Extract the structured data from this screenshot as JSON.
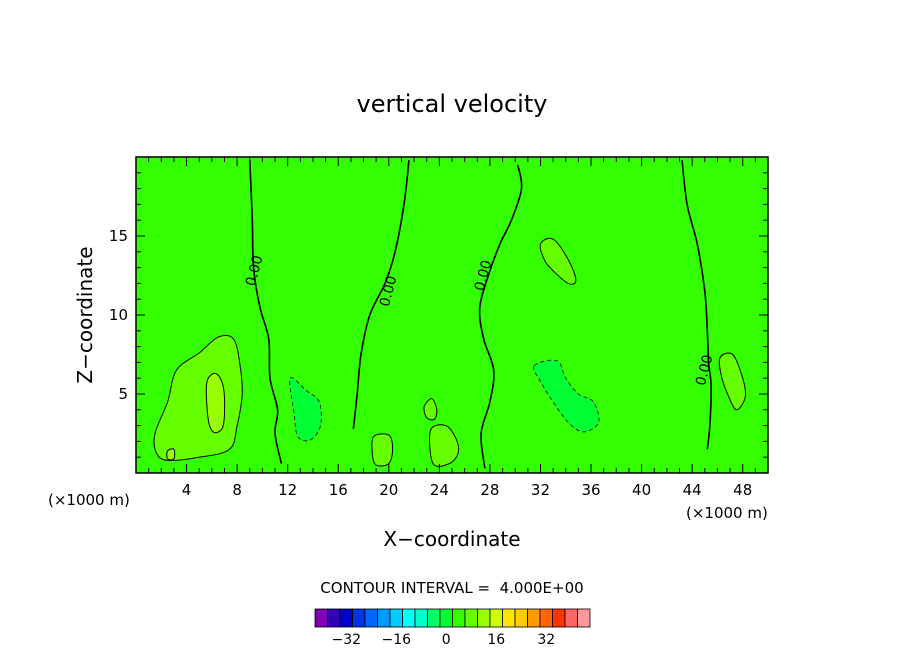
{
  "chart_data": {
    "type": "heatmap",
    "title": "vertical velocity",
    "xlabel": "X−coordinate",
    "ylabel": "Z−coordinate",
    "xunit_left": "(×1000 m)",
    "xunit_right": "(×1000 m)",
    "xlim": [
      0,
      50
    ],
    "ylim": [
      0,
      20
    ],
    "x_ticks": [
      {
        "value": 4,
        "label": "4"
      },
      {
        "value": 8,
        "label": "8"
      },
      {
        "value": 12,
        "label": "12"
      },
      {
        "value": 16,
        "label": "16"
      },
      {
        "value": 20,
        "label": "20"
      },
      {
        "value": 24,
        "label": "24"
      },
      {
        "value": 28,
        "label": "28"
      },
      {
        "value": 32,
        "label": "32"
      },
      {
        "value": 36,
        "label": "36"
      },
      {
        "value": 40,
        "label": "40"
      },
      {
        "value": 44,
        "label": "44"
      },
      {
        "value": 48,
        "label": "48"
      }
    ],
    "y_ticks": [
      {
        "value": 5,
        "label": "5"
      },
      {
        "value": 10,
        "label": "10"
      },
      {
        "value": 15,
        "label": "15"
      }
    ],
    "background_color": "#33ff00",
    "contour_interval_text": "CONTOUR INTERVAL =  4.000E+00",
    "contour_interval": 4,
    "zero_contour_label": "0.00",
    "zero_contours": [
      {
        "label_at": [
          9.4,
          12.8
        ],
        "points": [
          [
            9.0,
            19.8
          ],
          [
            9.2,
            16
          ],
          [
            9.3,
            13
          ],
          [
            9.8,
            10.5
          ],
          [
            10.5,
            8.5
          ],
          [
            10.6,
            6
          ],
          [
            11.2,
            4
          ],
          [
            11.0,
            2.5
          ],
          [
            11.5,
            0.6
          ]
        ]
      },
      {
        "label_at": [
          20.0,
          11.5
        ],
        "points": [
          [
            21.6,
            19.8
          ],
          [
            21.2,
            17
          ],
          [
            20.5,
            14
          ],
          [
            19.7,
            12
          ],
          [
            18.5,
            10
          ],
          [
            17.8,
            7.5
          ],
          [
            17.5,
            5
          ],
          [
            17.2,
            2.8
          ]
        ]
      },
      {
        "label_at": [
          27.5,
          12.5
        ],
        "points": [
          [
            30.2,
            19.5
          ],
          [
            30.5,
            18
          ],
          [
            29.7,
            16
          ],
          [
            28.8,
            14.5
          ],
          [
            28.0,
            12.8
          ],
          [
            27.2,
            10.5
          ],
          [
            27.5,
            8.5
          ],
          [
            28.3,
            6.5
          ],
          [
            28.0,
            4.5
          ],
          [
            27.3,
            2.5
          ],
          [
            27.6,
            0.3
          ]
        ]
      },
      {
        "label_at": [
          45.0,
          6.5
        ],
        "points": [
          [
            43.2,
            19.8
          ],
          [
            43.6,
            17
          ],
          [
            44.4,
            14.5
          ],
          [
            45.0,
            11.5
          ],
          [
            45.2,
            9
          ],
          [
            45.3,
            7
          ],
          [
            45.5,
            5.5
          ],
          [
            45.4,
            3
          ],
          [
            45.2,
            1.5
          ]
        ]
      }
    ],
    "regions": [
      {
        "value": 4,
        "color": "#66ff00",
        "points": [
          [
            1.5,
            2.5
          ],
          [
            2.5,
            4.5
          ],
          [
            3.2,
            6.5
          ],
          [
            5.0,
            7.6
          ],
          [
            6.5,
            8.6
          ],
          [
            7.7,
            8.5
          ],
          [
            8.2,
            7.0
          ],
          [
            8.4,
            5.0
          ],
          [
            8.0,
            3.0
          ],
          [
            7.4,
            1.5
          ],
          [
            5.0,
            1.0
          ],
          [
            2.5,
            0.8
          ],
          [
            1.6,
            1.3
          ]
        ]
      },
      {
        "value": 8,
        "color": "#99ff00",
        "points": [
          [
            5.6,
            5.7
          ],
          [
            6.3,
            6.3
          ],
          [
            6.9,
            5.5
          ],
          [
            7.0,
            3.8
          ],
          [
            6.8,
            2.8
          ],
          [
            6.1,
            2.6
          ],
          [
            5.7,
            3.5
          ]
        ]
      },
      {
        "value": 8,
        "color": "#99ff00",
        "points": [
          [
            2.5,
            1.4
          ],
          [
            3.0,
            1.5
          ],
          [
            3.0,
            0.9
          ],
          [
            2.5,
            0.9
          ]
        ]
      },
      {
        "value": -4,
        "color": "#00ff33",
        "points": [
          [
            12.2,
            6.0
          ],
          [
            13.5,
            5.2
          ],
          [
            14.5,
            4.5
          ],
          [
            14.6,
            3.0
          ],
          [
            13.8,
            2.1
          ],
          [
            12.8,
            2.3
          ],
          [
            12.5,
            3.8
          ]
        ]
      },
      {
        "value": -4,
        "color": "#00ff33",
        "points": [
          [
            31.5,
            6.8
          ],
          [
            33.3,
            7.1
          ],
          [
            34.0,
            6.0
          ],
          [
            35.0,
            5.0
          ],
          [
            36.2,
            4.5
          ],
          [
            36.6,
            3.2
          ],
          [
            35.4,
            2.6
          ],
          [
            34.2,
            3.2
          ],
          [
            33.0,
            4.5
          ],
          [
            32.0,
            5.8
          ]
        ]
      },
      {
        "value": 4,
        "color": "#66ff00",
        "points": [
          [
            32.0,
            14.5
          ],
          [
            33.0,
            14.8
          ],
          [
            34.2,
            13.5
          ],
          [
            34.8,
            12.2
          ],
          [
            34.2,
            12.0
          ],
          [
            33.0,
            12.8
          ],
          [
            32.3,
            13.5
          ]
        ]
      },
      {
        "value": 4,
        "color": "#66ff00",
        "points": [
          [
            46.2,
            7.3
          ],
          [
            47.2,
            7.5
          ],
          [
            48.0,
            6.0
          ],
          [
            48.2,
            4.8
          ],
          [
            47.5,
            4.0
          ],
          [
            46.8,
            5.0
          ],
          [
            46.3,
            6.2
          ]
        ]
      },
      {
        "value": 4,
        "color": "#66ff00",
        "points": [
          [
            18.8,
            2.3
          ],
          [
            20.0,
            2.4
          ],
          [
            20.3,
            1.5
          ],
          [
            20.0,
            0.6
          ],
          [
            19.0,
            0.5
          ],
          [
            18.7,
            1.2
          ]
        ]
      },
      {
        "value": 4,
        "color": "#66ff00",
        "points": [
          [
            23.3,
            2.7
          ],
          [
            24.5,
            3.0
          ],
          [
            25.3,
            2.2
          ],
          [
            25.5,
            1.3
          ],
          [
            24.8,
            0.6
          ],
          [
            23.5,
            0.6
          ]
        ]
      },
      {
        "value": 4,
        "color": "#66ff00",
        "points": [
          [
            22.8,
            4.2
          ],
          [
            23.4,
            4.7
          ],
          [
            23.8,
            4.0
          ],
          [
            23.6,
            3.4
          ],
          [
            23.0,
            3.5
          ]
        ]
      }
    ],
    "palette": [
      {
        "value": -40,
        "color": "#7f00b3"
      },
      {
        "value": -36,
        "color": "#3300b3"
      },
      {
        "value": -32,
        "color": "#0000cc"
      },
      {
        "value": -28,
        "color": "#0033e6"
      },
      {
        "value": -24,
        "color": "#0066ff"
      },
      {
        "value": -20,
        "color": "#0099ff"
      },
      {
        "value": -16,
        "color": "#00ccff"
      },
      {
        "value": -12,
        "color": "#00ffff"
      },
      {
        "value": -8,
        "color": "#00ffcc"
      },
      {
        "value": -4,
        "color": "#00ff66"
      },
      {
        "value": 0,
        "color": "#00ff33"
      },
      {
        "value": 4,
        "color": "#33ff00"
      },
      {
        "value": 8,
        "color": "#66ff00"
      },
      {
        "value": 12,
        "color": "#99ff00"
      },
      {
        "value": 16,
        "color": "#ccff00"
      },
      {
        "value": 20,
        "color": "#ffe500"
      },
      {
        "value": 24,
        "color": "#ffcc00"
      },
      {
        "value": 28,
        "color": "#ff9900"
      },
      {
        "value": 32,
        "color": "#ff6600"
      },
      {
        "value": 36,
        "color": "#ff3300"
      },
      {
        "value": 40,
        "color": "#ff6666"
      },
      {
        "value": 44,
        "color": "#ff9999"
      }
    ],
    "colorbar_labels": [
      {
        "value": -32,
        "label": "−32"
      },
      {
        "value": -16,
        "label": "−16"
      },
      {
        "value": 0,
        "label": "0"
      },
      {
        "value": 16,
        "label": "16"
      },
      {
        "value": 32,
        "label": "32"
      }
    ]
  }
}
